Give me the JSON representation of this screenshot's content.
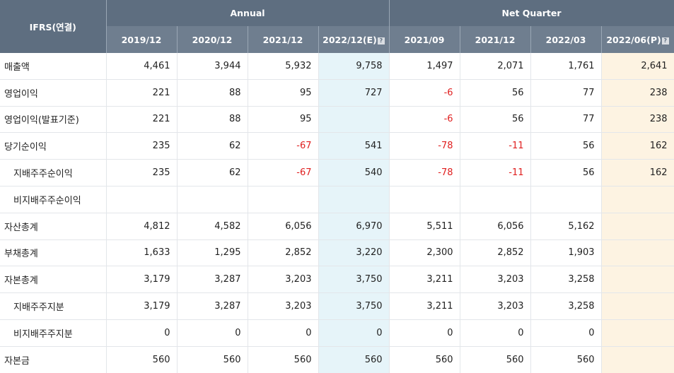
{
  "header": {
    "ifrs_label": "IFRS(연결)",
    "annual_label": "Annual",
    "quarter_label": "Net Quarter",
    "periods": [
      "2019/12",
      "2020/12",
      "2021/12",
      "2022/12(E)",
      "2021/09",
      "2021/12",
      "2022/03",
      "2022/06(P)"
    ],
    "help_glyph": "?"
  },
  "rows": [
    {
      "label": "매출액",
      "sub": false,
      "values": [
        "4,461",
        "3,944",
        "5,932",
        "9,758",
        "1,497",
        "2,071",
        "1,761",
        "2,641"
      ]
    },
    {
      "label": "영업이익",
      "sub": false,
      "values": [
        "221",
        "88",
        "95",
        "727",
        "-6",
        "56",
        "77",
        "238"
      ]
    },
    {
      "label": "영업이익(발표기준)",
      "sub": false,
      "values": [
        "221",
        "88",
        "95",
        "",
        "-6",
        "56",
        "77",
        "238"
      ]
    },
    {
      "label": "당기순이익",
      "sub": false,
      "values": [
        "235",
        "62",
        "-67",
        "541",
        "-78",
        "-11",
        "56",
        "162"
      ]
    },
    {
      "label": "지배주주순이익",
      "sub": true,
      "values": [
        "235",
        "62",
        "-67",
        "540",
        "-78",
        "-11",
        "56",
        "162"
      ]
    },
    {
      "label": "비지배주주순이익",
      "sub": true,
      "values": [
        "",
        "",
        "",
        "",
        "",
        "",
        "",
        ""
      ]
    },
    {
      "label": "자산총계",
      "sub": false,
      "values": [
        "4,812",
        "4,582",
        "6,056",
        "6,970",
        "5,511",
        "6,056",
        "5,162",
        ""
      ]
    },
    {
      "label": "부채총계",
      "sub": false,
      "values": [
        "1,633",
        "1,295",
        "2,852",
        "3,220",
        "2,300",
        "2,852",
        "1,903",
        ""
      ]
    },
    {
      "label": "자본총계",
      "sub": false,
      "values": [
        "3,179",
        "3,287",
        "3,203",
        "3,750",
        "3,211",
        "3,203",
        "3,258",
        ""
      ]
    },
    {
      "label": "지배주주지분",
      "sub": true,
      "values": [
        "3,179",
        "3,287",
        "3,203",
        "3,750",
        "3,211",
        "3,203",
        "3,258",
        ""
      ]
    },
    {
      "label": "비지배주주지분",
      "sub": true,
      "values": [
        "0",
        "0",
        "0",
        "0",
        "0",
        "0",
        "0",
        ""
      ]
    },
    {
      "label": "자본금",
      "sub": false,
      "values": [
        "560",
        "560",
        "560",
        "560",
        "560",
        "560",
        "560",
        ""
      ]
    }
  ],
  "colors": {
    "header_dark": "#5e6e80",
    "header_light": "#6f7e8f",
    "estimate_bg": "#e6f4f9",
    "preliminary_bg": "#fdf3e2",
    "negative": "#e02020"
  }
}
